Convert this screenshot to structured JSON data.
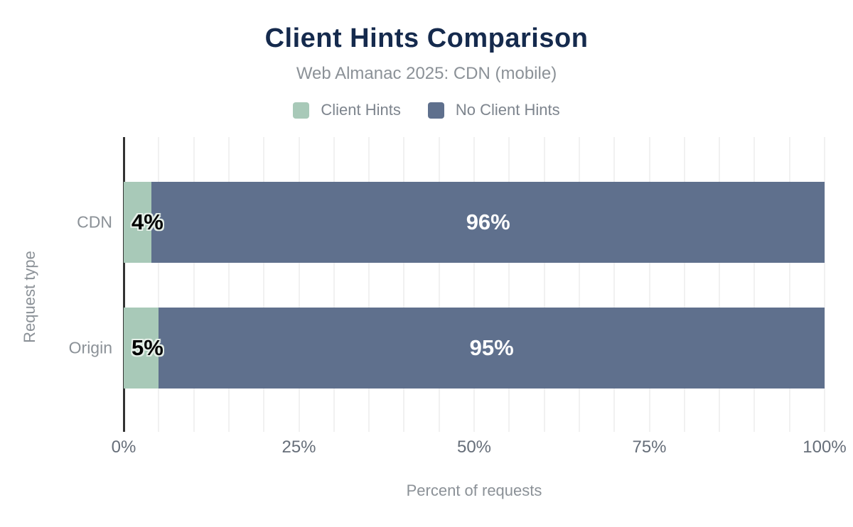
{
  "title": "Client Hints Comparison",
  "subtitle": "Web Almanac 2025: CDN (mobile)",
  "colors": {
    "title_navy": "#152a4d",
    "subtitle_gray": "#8b9197",
    "tick_gray": "#666e79",
    "axis_line": "#333333",
    "gridline": "#f1f1f1",
    "client_hints_green": "#a8c9b8",
    "no_client_hints_slate": "#5f708d",
    "value_label_black": "#000000",
    "value_label_white": "#ffffff"
  },
  "chart_data": {
    "type": "bar",
    "orientation": "horizontal",
    "stacked": true,
    "title": "Client Hints Comparison",
    "subtitle": "Web Almanac 2025: CDN (mobile)",
    "categories": [
      "CDN",
      "Origin"
    ],
    "series": [
      {
        "name": "Client Hints",
        "color": "#a8c9b8",
        "values": [
          4,
          5
        ]
      },
      {
        "name": "No Client Hints",
        "color": "#5f708d",
        "values": [
          96,
          95
        ]
      }
    ],
    "value_labels": [
      [
        "4%",
        "96%"
      ],
      [
        "5%",
        "95%"
      ]
    ],
    "xlabel": "Percent of requests",
    "ylabel": "Request type",
    "xlim": [
      0,
      100
    ],
    "x_tick_labels": [
      "0%",
      "25%",
      "50%",
      "75%",
      "100%"
    ],
    "x_tick_values": [
      0,
      25,
      50,
      75,
      100
    ],
    "grid": "vertical",
    "grid_step_percent": 5,
    "legend_position": "top"
  }
}
